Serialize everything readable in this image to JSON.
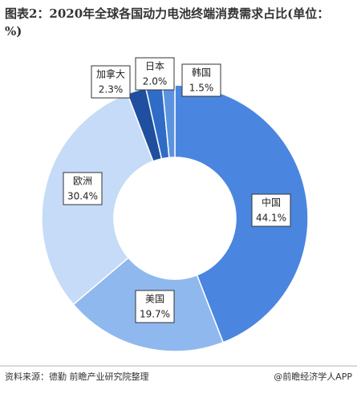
{
  "chart_data": {
    "type": "donut",
    "title": "图表2：2020年全球各国动力电池终端消费需求占比(单位：%)",
    "categories": [
      "中国",
      "美国",
      "欧洲",
      "加拿大",
      "日本",
      "韩国"
    ],
    "values": [
      44.1,
      19.7,
      30.4,
      2.3,
      2.0,
      1.5
    ],
    "value_labels": [
      "44.1%",
      "19.7%",
      "30.4%",
      "2.3%",
      "2.0%",
      "1.5%"
    ],
    "colors": [
      "#4a86e0",
      "#8fb8ee",
      "#c5dbf7",
      "#1f4f9e",
      "#2f6cc8",
      "#5c93e0"
    ],
    "source": "资料来源：德勤 前瞻产业研究院整理",
    "credit": "@前瞻经济学人APP"
  }
}
